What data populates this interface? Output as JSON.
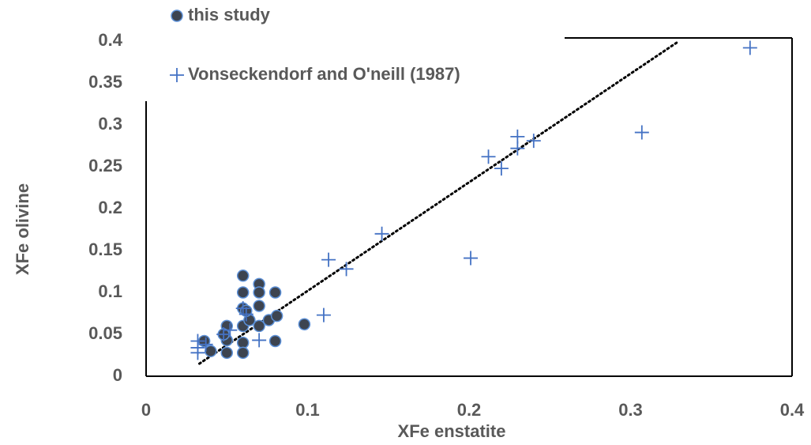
{
  "chart_data": {
    "type": "scatter",
    "xlabel": "XFe enstatite",
    "ylabel": "XFe olivine",
    "xlim": [
      0,
      0.4
    ],
    "ylim": [
      0,
      0.4
    ],
    "xticks": [
      0,
      0.1,
      0.2,
      0.3,
      0.4
    ],
    "yticks": [
      0,
      0.05,
      0.1,
      0.15,
      0.2,
      0.25,
      0.3,
      0.35,
      0.4
    ],
    "legend": "top-left",
    "series": [
      {
        "name": "this study",
        "marker": "circle",
        "color": "#3d4450",
        "edgecolor": "#5b8fd6",
        "x": [
          0.036,
          0.04,
          0.05,
          0.05,
          0.05,
          0.048,
          0.06,
          0.06,
          0.06,
          0.06,
          0.06,
          0.06,
          0.064,
          0.07,
          0.07,
          0.07,
          0.07,
          0.076,
          0.08,
          0.081,
          0.08,
          0.098,
          0.062
        ],
        "values": [
          0.042,
          0.03,
          0.06,
          0.043,
          0.028,
          0.05,
          0.12,
          0.1,
          0.081,
          0.06,
          0.04,
          0.028,
          0.067,
          0.11,
          0.1,
          0.084,
          0.06,
          0.067,
          0.1,
          0.072,
          0.042,
          0.062,
          0.078
        ]
      },
      {
        "name": "Vonseckendorf and O'neill (1987)",
        "marker": "plus",
        "color": "#4472c4",
        "x": [
          0.032,
          0.032,
          0.037,
          0.032,
          0.048,
          0.052,
          0.06,
          0.062,
          0.07,
          0.11,
          0.113,
          0.124,
          0.146,
          0.201,
          0.212,
          0.22,
          0.23,
          0.23,
          0.24,
          0.307,
          0.374
        ],
        "values": [
          0.042,
          0.034,
          0.038,
          0.028,
          0.05,
          0.055,
          0.081,
          0.074,
          0.043,
          0.073,
          0.139,
          0.128,
          0.17,
          0.141,
          0.262,
          0.248,
          0.286,
          0.272,
          0.281,
          0.291,
          0.392
        ]
      }
    ],
    "trendline": {
      "color": "#000000",
      "x": [
        0.033,
        0.33
      ],
      "values": [
        0.015,
        0.4
      ]
    }
  }
}
